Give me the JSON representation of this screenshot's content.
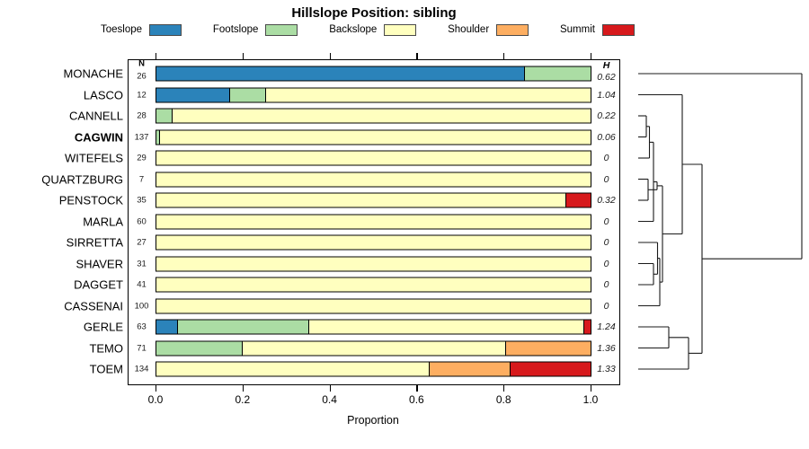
{
  "title": "Hillslope Position: sibling",
  "legend": {
    "items": [
      {
        "label": "Toeslope",
        "color": "#2b83ba"
      },
      {
        "label": "Footslope",
        "color": "#abdda4"
      },
      {
        "label": "Backslope",
        "color": "#ffffbf"
      },
      {
        "label": "Shoulder",
        "color": "#fdae61"
      },
      {
        "label": "Summit",
        "color": "#d7191c"
      }
    ]
  },
  "chart_data": {
    "type": "bar",
    "subtype": "horizontal-stacked-proportion",
    "title": "Hillslope Position: sibling",
    "xlabel": "Proportion",
    "xlim": [
      0,
      1
    ],
    "xticks": [
      0.0,
      0.2,
      0.4,
      0.6,
      0.8,
      1.0
    ],
    "xtick_labels": [
      "0.0",
      "0.2",
      "0.4",
      "0.6",
      "0.8",
      "1.0"
    ],
    "grid": false,
    "legend_position": "top",
    "categories": [
      "Toeslope",
      "Footslope",
      "Backslope",
      "Shoulder",
      "Summit"
    ],
    "colors": [
      "#2b83ba",
      "#abdda4",
      "#ffffbf",
      "#fdae61",
      "#d7191c"
    ],
    "n_column_header": "N",
    "h_column_header": "H",
    "rows": [
      {
        "label": "MONACHE",
        "bold": false,
        "n": 26,
        "h": "0.62",
        "proportions": [
          0.846,
          0.154,
          0,
          0,
          0
        ]
      },
      {
        "label": "LASCO",
        "bold": false,
        "n": 12,
        "h": "1.04",
        "proportions": [
          0.167,
          0.083,
          0.75,
          0,
          0
        ]
      },
      {
        "label": "CANNELL",
        "bold": false,
        "n": 28,
        "h": "0.22",
        "proportions": [
          0,
          0.036,
          0.964,
          0,
          0
        ]
      },
      {
        "label": "CAGWIN",
        "bold": true,
        "n": 137,
        "h": "0.06",
        "proportions": [
          0,
          0.007,
          0.993,
          0,
          0
        ]
      },
      {
        "label": "WITEFELS",
        "bold": false,
        "n": 29,
        "h": "0",
        "proportions": [
          0,
          0,
          1,
          0,
          0
        ]
      },
      {
        "label": "QUARTZBURG",
        "bold": false,
        "n": 7,
        "h": "0",
        "proportions": [
          0,
          0,
          1,
          0,
          0
        ]
      },
      {
        "label": "PENSTOCK",
        "bold": false,
        "n": 35,
        "h": "0.32",
        "proportions": [
          0,
          0,
          0.943,
          0,
          0.057
        ]
      },
      {
        "label": "MARLA",
        "bold": false,
        "n": 60,
        "h": "0",
        "proportions": [
          0,
          0,
          1,
          0,
          0
        ]
      },
      {
        "label": "SIRRETTA",
        "bold": false,
        "n": 27,
        "h": "0",
        "proportions": [
          0,
          0,
          1,
          0,
          0
        ]
      },
      {
        "label": "SHAVER",
        "bold": false,
        "n": 31,
        "h": "0",
        "proportions": [
          0,
          0,
          1,
          0,
          0
        ]
      },
      {
        "label": "DAGGET",
        "bold": false,
        "n": 41,
        "h": "0",
        "proportions": [
          0,
          0,
          1,
          0,
          0
        ]
      },
      {
        "label": "CASSENAI",
        "bold": false,
        "n": 100,
        "h": "0",
        "proportions": [
          0,
          0,
          1,
          0,
          0
        ]
      },
      {
        "label": "GERLE",
        "bold": false,
        "n": 63,
        "h": "1.24",
        "proportions": [
          0.048,
          0.302,
          0.634,
          0,
          0.016
        ]
      },
      {
        "label": "TEMO",
        "bold": false,
        "n": 71,
        "h": "1.36",
        "proportions": [
          0,
          0.197,
          0.606,
          0.197,
          0
        ]
      },
      {
        "label": "TOEM",
        "bold": false,
        "n": 134,
        "h": "1.33",
        "proportions": [
          0,
          0,
          0.627,
          0.186,
          0.187
        ]
      }
    ],
    "dendrogram": {
      "orientation": "leaves-left-root-right",
      "segments": [
        [
          710,
          82,
          892,
          82
        ],
        [
          710,
          105.5,
          759,
          105.5
        ],
        [
          710,
          129,
          719,
          129
        ],
        [
          710,
          152.5,
          719,
          152.5
        ],
        [
          710,
          176,
          722.5,
          176
        ],
        [
          710,
          199.5,
          721,
          199.5
        ],
        [
          710,
          223,
          721,
          223
        ],
        [
          710,
          246.5,
          727,
          246.5
        ],
        [
          710,
          270,
          731.5,
          270
        ],
        [
          710,
          293.5,
          727,
          293.5
        ],
        [
          710,
          317,
          727,
          317
        ],
        [
          710,
          340.5,
          734,
          340.5
        ],
        [
          710,
          364,
          744,
          364
        ],
        [
          710,
          387.5,
          744,
          387.5
        ],
        [
          710,
          411,
          766,
          411
        ],
        [
          719,
          129,
          719,
          152.5
        ],
        [
          722.5,
          140.8,
          722.5,
          176
        ],
        [
          721,
          199.5,
          721,
          223
        ],
        [
          727,
          158.4,
          727,
          246.5
        ],
        [
          731,
          202.5,
          731,
          211.3
        ],
        [
          727,
          293.5,
          727,
          317
        ],
        [
          731.5,
          270,
          731.5,
          305.3
        ],
        [
          734,
          287.6,
          734,
          340.5
        ],
        [
          737,
          206.9,
          737,
          314.1
        ],
        [
          759,
          105.5,
          759,
          260.5
        ],
        [
          744,
          364,
          744,
          387.5
        ],
        [
          766,
          375.8,
          766,
          411
        ],
        [
          781,
          183,
          781,
          393.4
        ],
        [
          892,
          82,
          892,
          288.2
        ],
        [
          719,
          140.8,
          722.5,
          140.8
        ],
        [
          722.5,
          158.4,
          727,
          158.4
        ],
        [
          721,
          211.3,
          731,
          211.3
        ],
        [
          727,
          202.5,
          731,
          202.5
        ],
        [
          731,
          206.9,
          737,
          206.9
        ],
        [
          727,
          305.3,
          731.5,
          305.3
        ],
        [
          731.5,
          287.6,
          734,
          287.6
        ],
        [
          734,
          314.1,
          737,
          314.1
        ],
        [
          737,
          260.5,
          759,
          260.5
        ],
        [
          759,
          183,
          781,
          183
        ],
        [
          744,
          375.8,
          766,
          375.8
        ],
        [
          766,
          393.4,
          781,
          393.4
        ],
        [
          781,
          288.2,
          892,
          288.2
        ]
      ]
    }
  }
}
